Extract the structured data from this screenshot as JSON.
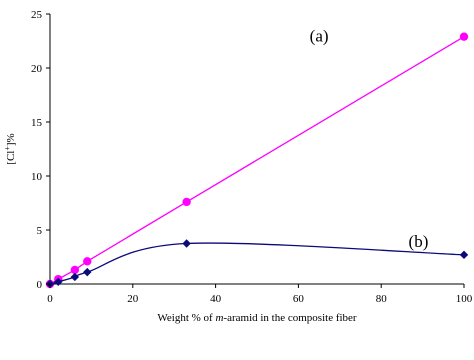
{
  "chart_data": {
    "type": "scatter",
    "xlabel_prefix": "Weight % of ",
    "xlabel_italic": "m",
    "xlabel_suffix": "-aramid in the composite fiber",
    "ylabel_main": "[Cl",
    "ylabel_sup": "+",
    "ylabel_suffix": "]%",
    "xlim": [
      0,
      100
    ],
    "ylim": [
      0,
      25
    ],
    "xticks": [
      0,
      20,
      40,
      60,
      80,
      100
    ],
    "yticks": [
      0,
      5,
      10,
      15,
      20,
      25
    ],
    "grid": false,
    "series": [
      {
        "label": "(a)",
        "color": "#ff00ff",
        "marker": "circle",
        "line": "straight",
        "x": [
          0,
          2,
          6,
          9,
          33,
          100
        ],
        "y": [
          0,
          0.45,
          1.3,
          2.1,
          7.6,
          22.9
        ]
      },
      {
        "label": "(b)",
        "color": "#0a0a7a",
        "marker": "diamond",
        "line": "smooth",
        "x": [
          0,
          2,
          6,
          9,
          33,
          100
        ],
        "y": [
          0,
          0.2,
          0.65,
          1.1,
          3.75,
          2.7
        ]
      }
    ],
    "annotations": [
      {
        "text": "(a)",
        "x": 65,
        "y": 23
      },
      {
        "text": "(b)",
        "x": 89,
        "y": 4
      }
    ]
  }
}
